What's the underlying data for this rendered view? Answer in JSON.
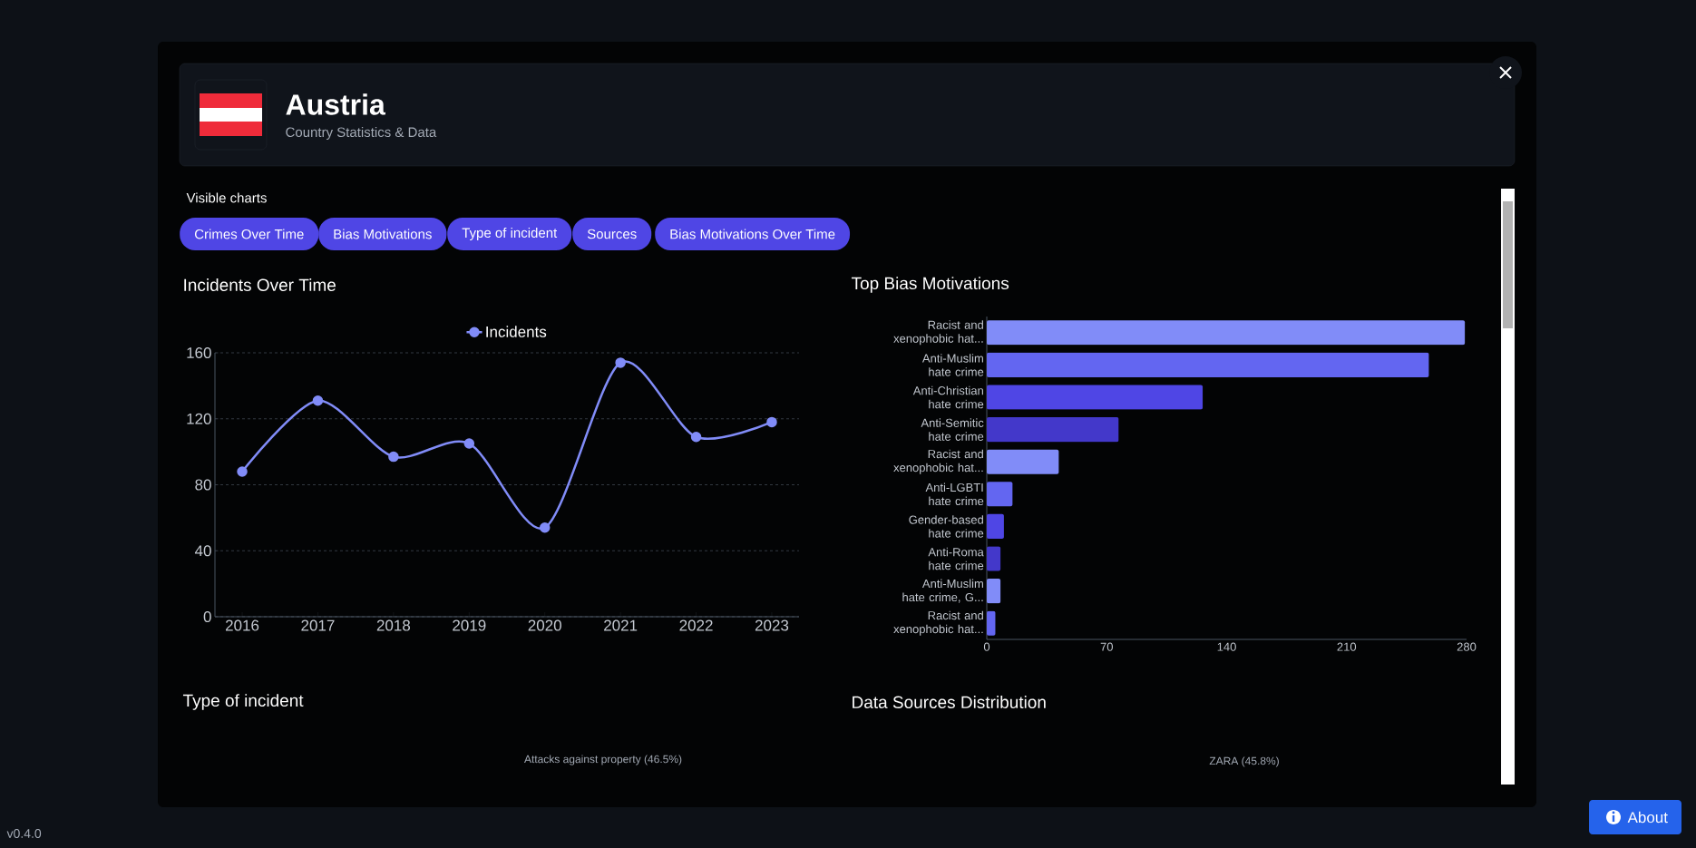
{
  "chart_data": [
    {
      "type": "other",
      "title": "Austria",
      "subtitle": "Country Statistics & Data",
      "annotations": [
        "Visible charts",
        "Crimes Over Time",
        "Bias Motivations",
        "Type of incident",
        "Sources",
        "Bias Motivations Over Time",
        "About",
        "v0.4.0"
      ]
    },
    {
      "type": "line",
      "title": "Incidents Over Time",
      "categories": [
        "2016",
        "2017",
        "2018",
        "2019",
        "2020",
        "2021",
        "2022",
        "2023"
      ],
      "series": [
        {
          "name": "Incidents",
          "color": "#818cf8",
          "values": [
            88,
            131,
            97,
            105,
            54,
            154,
            109,
            118
          ]
        }
      ],
      "ylim": [
        0,
        160
      ],
      "yticks": [
        0,
        40,
        80,
        120,
        160
      ],
      "grid": "y",
      "legend": "top",
      "marker": "circle",
      "line_style": "solid"
    },
    {
      "type": "bar",
      "title": "Top Bias Motivations",
      "orientation": "horizontal",
      "categories": [
        "Racist and xenophobic hat...",
        "Anti-Muslim hate crime",
        "Anti-Christian hate crime",
        "Anti-Semitic hate crime",
        "Racist and xenophobic hat...",
        "Anti-LGBTI hate crime",
        "Gender-based hate crime",
        "Anti-Roma hate crime",
        "Anti-Muslim hate crime, G...",
        "Racist and xenophobic hat..."
      ],
      "values": [
        279,
        258,
        126,
        77,
        42,
        15,
        10,
        8,
        8,
        5
      ],
      "colors": [
        "#818cf8",
        "#6366f1",
        "#4f46e5",
        "#4338ca",
        "#818cf8",
        "#6366f1",
        "#4f46e5",
        "#4338ca",
        "#818cf8",
        "#6366f1"
      ],
      "xlim": [
        0,
        280
      ],
      "xticks": [
        0,
        70,
        140,
        210,
        280
      ],
      "grid": false
    },
    {
      "type": "other",
      "title": "Type of incident",
      "annotations": [
        "Attacks against property (46.5%)"
      ]
    },
    {
      "type": "other",
      "title": "Data Sources Distribution",
      "annotations": [
        "ZARA (45.8%)"
      ]
    }
  ]
}
